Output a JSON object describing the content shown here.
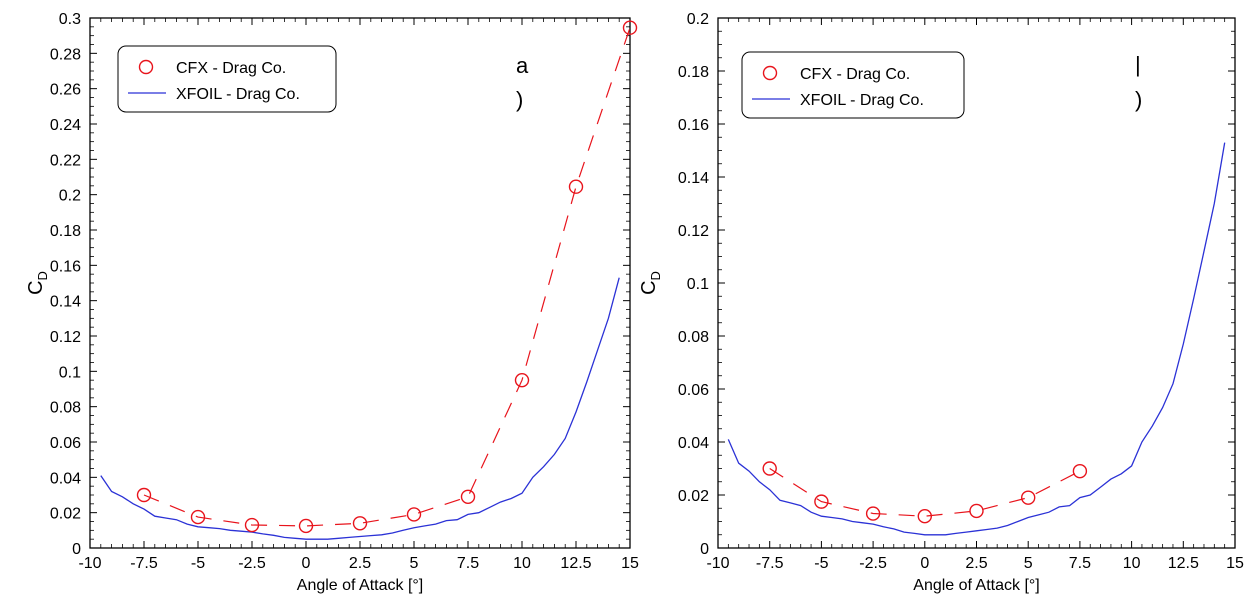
{
  "colors": {
    "cfx": "#e8141c",
    "xfoil": "#2b32d6",
    "axis": "#000000"
  },
  "chart_data": [
    {
      "type": "line",
      "xlabel": "Angle of Attack [°]",
      "ylabel": "C",
      "ylabel_sub": "D",
      "xlim": [
        -10,
        15
      ],
      "ylim": [
        0,
        0.3
      ],
      "xticks": [
        "-10",
        "-7.5",
        "-5",
        "-2.5",
        "0",
        "2.5",
        "5",
        "7.5",
        "10",
        "12.5",
        "15"
      ],
      "yticks": [
        "0",
        "0.02",
        "0.04",
        "0.06",
        "0.08",
        "0.1",
        "0.12",
        "0.14",
        "0.16",
        "0.18",
        "0.2",
        "0.22",
        "0.24",
        "0.26",
        "0.28",
        "0.3"
      ],
      "legend": {
        "position": "top-left",
        "entries": [
          "CFX - Drag Co.",
          "XFOIL - Drag Co."
        ]
      },
      "panel_marks": [
        "a",
        ")"
      ],
      "series": [
        {
          "name": "CFX - Drag Co.",
          "style": "dashed-markers",
          "x": [
            -7.5,
            -5,
            -2.5,
            0,
            2.5,
            5,
            7.5,
            10,
            12.5,
            15
          ],
          "y": [
            0.03,
            0.0175,
            0.013,
            0.0125,
            0.014,
            0.019,
            0.029,
            0.095,
            0.2045,
            0.2945
          ]
        },
        {
          "name": "XFOIL - Drag Co.",
          "style": "solid",
          "x": [
            -9.5,
            -9,
            -8.5,
            -8,
            -7.5,
            -7,
            -6.5,
            -6,
            -5.5,
            -5,
            -4.5,
            -4,
            -3.5,
            -3,
            -2.5,
            -2,
            -1.5,
            -1,
            -0.5,
            0,
            0.5,
            1,
            1.5,
            2,
            2.5,
            3,
            3.5,
            4,
            4.5,
            5,
            5.5,
            6,
            6.5,
            7,
            7.5,
            8,
            8.5,
            9,
            9.5,
            10,
            10.5,
            11,
            11.5,
            12,
            12.5,
            13,
            13.5,
            14,
            14.5
          ],
          "y": [
            0.041,
            0.032,
            0.029,
            0.025,
            0.022,
            0.018,
            0.017,
            0.016,
            0.0135,
            0.012,
            0.0115,
            0.011,
            0.01,
            0.0095,
            0.009,
            0.008,
            0.0072,
            0.006,
            0.0055,
            0.005,
            0.005,
            0.005,
            0.0055,
            0.006,
            0.0065,
            0.007,
            0.0075,
            0.0085,
            0.01,
            0.0115,
            0.0125,
            0.0135,
            0.0155,
            0.016,
            0.019,
            0.02,
            0.023,
            0.026,
            0.028,
            0.031,
            0.04,
            0.046,
            0.053,
            0.062,
            0.077,
            0.094,
            0.112,
            0.13,
            0.153
          ]
        }
      ]
    },
    {
      "type": "line",
      "xlabel": "Angle of Attack [°]",
      "ylabel": "C",
      "ylabel_sub": "D",
      "xlim": [
        -10,
        15
      ],
      "ylim": [
        0,
        0.2
      ],
      "xticks": [
        "-10",
        "-7.5",
        "-5",
        "-2.5",
        "0",
        "2.5",
        "5",
        "7.5",
        "10",
        "12.5",
        "15"
      ],
      "yticks": [
        "0",
        "0.02",
        "0.04",
        "0.06",
        "0.08",
        "0.1",
        "0.12",
        "0.14",
        "0.16",
        "0.18",
        "0.2"
      ],
      "legend": {
        "position": "top-left",
        "entries": [
          "CFX - Drag Co.",
          "XFOIL -  Drag Co."
        ]
      },
      "panel_marks": [
        "|",
        ")"
      ],
      "series": [
        {
          "name": "CFX - Drag Co.",
          "style": "dashed-markers",
          "x": [
            -7.5,
            -5,
            -2.5,
            0,
            2.5,
            5,
            7.5
          ],
          "y": [
            0.03,
            0.0175,
            0.013,
            0.012,
            0.014,
            0.019,
            0.029
          ]
        },
        {
          "name": "XFOIL -  Drag Co.",
          "style": "solid",
          "x": [
            -9.5,
            -9,
            -8.5,
            -8,
            -7.5,
            -7,
            -6.5,
            -6,
            -5.5,
            -5,
            -4.5,
            -4,
            -3.5,
            -3,
            -2.5,
            -2,
            -1.5,
            -1,
            -0.5,
            0,
            0.5,
            1,
            1.5,
            2,
            2.5,
            3,
            3.5,
            4,
            4.5,
            5,
            5.5,
            6,
            6.5,
            7,
            7.5,
            8,
            8.5,
            9,
            9.5,
            10,
            10.5,
            11,
            11.5,
            12,
            12.5,
            13,
            13.5,
            14,
            14.5
          ],
          "y": [
            0.041,
            0.032,
            0.029,
            0.025,
            0.022,
            0.018,
            0.017,
            0.016,
            0.0135,
            0.012,
            0.0115,
            0.011,
            0.01,
            0.0095,
            0.009,
            0.008,
            0.0072,
            0.006,
            0.0055,
            0.005,
            0.005,
            0.005,
            0.0055,
            0.006,
            0.0065,
            0.007,
            0.0075,
            0.0085,
            0.01,
            0.0115,
            0.0125,
            0.0135,
            0.0155,
            0.016,
            0.019,
            0.02,
            0.023,
            0.026,
            0.028,
            0.031,
            0.04,
            0.046,
            0.053,
            0.062,
            0.077,
            0.094,
            0.112,
            0.13,
            0.153
          ]
        }
      ]
    }
  ]
}
